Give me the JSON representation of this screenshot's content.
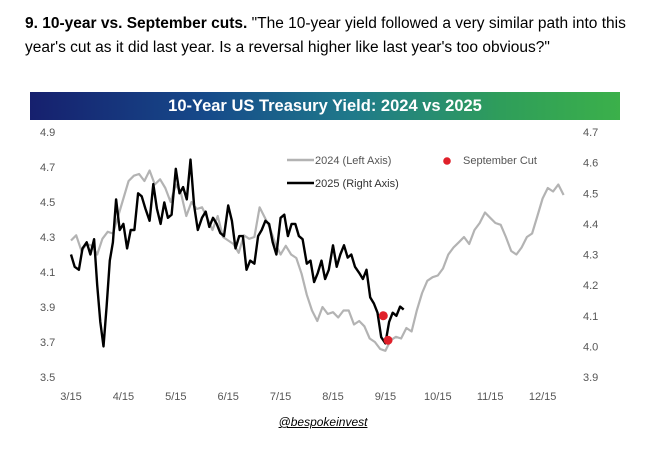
{
  "heading": {
    "lead": "9. 10-year vs. September cuts.",
    "quote": " \"The 10-year yield followed a very similar path into this year's cut as it did last year. Is a reversal higher like last year's too obvious?\""
  },
  "credit": "@bespokeinvest",
  "colors": {
    "series_2024": "#b3b3b3",
    "series_2025": "#000000",
    "cut_marker": "#e0202a",
    "axis_text": "#555555"
  },
  "chart_data": {
    "type": "line",
    "title": "10-Year US Treasury Yield: 2024 vs 2025",
    "x_ticks": [
      "3/15",
      "4/15",
      "5/15",
      "6/15",
      "7/15",
      "8/15",
      "9/15",
      "10/15",
      "11/15",
      "12/15"
    ],
    "x_tick_positions": [
      0,
      1,
      2,
      3,
      4,
      5,
      6,
      7,
      8,
      9
    ],
    "xlim": [
      0,
      9.4
    ],
    "left_axis": {
      "ticks": [
        "4.9",
        "4.7",
        "4.5",
        "4.3",
        "4.1",
        "3.9",
        "3.7",
        "3.5"
      ],
      "ylim": [
        3.5,
        4.9
      ]
    },
    "right_axis": {
      "ticks": [
        "4.7",
        "4.6",
        "4.5",
        "4.4",
        "4.3",
        "4.2",
        "4.1",
        "4.0",
        "3.9"
      ],
      "ylim": [
        3.9,
        4.7
      ]
    },
    "legend": [
      {
        "label": "2024 (Left Axis)",
        "series": "2024"
      },
      {
        "label": "2025 (Right Axis)",
        "series": "2025"
      },
      {
        "label": "September Cut",
        "series": "cut"
      }
    ],
    "series": [
      {
        "name": "2024 (Left Axis)",
        "axis": "left",
        "x": [
          0,
          0.1,
          0.2,
          0.3,
          0.4,
          0.5,
          0.6,
          0.7,
          0.8,
          0.9,
          1.0,
          1.1,
          1.2,
          1.3,
          1.4,
          1.5,
          1.6,
          1.7,
          1.8,
          1.9,
          2.0,
          2.1,
          2.2,
          2.3,
          2.4,
          2.5,
          2.6,
          2.7,
          2.8,
          2.9,
          3.0,
          3.1,
          3.2,
          3.3,
          3.4,
          3.5,
          3.6,
          3.7,
          3.8,
          3.9,
          4.0,
          4.1,
          4.2,
          4.3,
          4.4,
          4.5,
          4.6,
          4.7,
          4.8,
          4.9,
          5.0,
          5.1,
          5.2,
          5.3,
          5.4,
          5.5,
          5.6,
          5.7,
          5.8,
          5.9,
          6.0,
          6.1,
          6.2,
          6.3,
          6.4,
          6.5,
          6.6,
          6.7,
          6.8,
          6.9,
          7.0,
          7.1,
          7.2,
          7.3,
          7.4,
          7.5,
          7.6,
          7.7,
          7.8,
          7.9,
          8.0,
          8.1,
          8.2,
          8.3,
          8.4,
          8.5,
          8.6,
          8.7,
          8.8,
          8.9,
          9.0,
          9.1,
          9.2,
          9.3,
          9.4
        ],
        "values": [
          4.28,
          4.31,
          4.22,
          4.26,
          4.25,
          4.2,
          4.29,
          4.33,
          4.32,
          4.42,
          4.52,
          4.62,
          4.65,
          4.66,
          4.62,
          4.68,
          4.6,
          4.63,
          4.58,
          4.5,
          4.6,
          4.55,
          4.42,
          4.5,
          4.46,
          4.47,
          4.41,
          4.34,
          4.42,
          4.3,
          4.28,
          4.26,
          4.21,
          4.31,
          4.29,
          4.3,
          4.47,
          4.41,
          4.35,
          4.26,
          4.2,
          4.25,
          4.2,
          4.18,
          4.09,
          3.97,
          3.88,
          3.82,
          3.9,
          3.86,
          3.87,
          3.84,
          3.88,
          3.88,
          3.8,
          3.82,
          3.79,
          3.72,
          3.7,
          3.66,
          3.65,
          3.71,
          3.73,
          3.72,
          3.78,
          3.76,
          3.88,
          3.98,
          4.05,
          4.07,
          4.08,
          4.12,
          4.2,
          4.24,
          4.27,
          4.3,
          4.26,
          4.34,
          4.38,
          4.44,
          4.41,
          4.38,
          4.37,
          4.3,
          4.22,
          4.2,
          4.24,
          4.3,
          4.32,
          4.42,
          4.52,
          4.58,
          4.56,
          4.6,
          4.54
        ]
      },
      {
        "name": "2025 (Right Axis)",
        "axis": "right",
        "x": [
          0,
          0.07,
          0.15,
          0.22,
          0.3,
          0.37,
          0.44,
          0.5,
          0.56,
          0.62,
          0.68,
          0.74,
          0.8,
          0.86,
          0.93,
          1.0,
          1.07,
          1.14,
          1.21,
          1.28,
          1.35,
          1.42,
          1.5,
          1.57,
          1.64,
          1.71,
          1.78,
          1.85,
          1.92,
          2.0,
          2.07,
          2.14,
          2.21,
          2.28,
          2.35,
          2.42,
          2.5,
          2.57,
          2.64,
          2.71,
          2.78,
          2.85,
          2.92,
          3.0,
          3.07,
          3.14,
          3.21,
          3.28,
          3.35,
          3.42,
          3.5,
          3.57,
          3.64,
          3.71,
          3.78,
          3.85,
          3.92,
          4.0,
          4.07,
          4.14,
          4.21,
          4.28,
          4.35,
          4.42,
          4.5,
          4.57,
          4.64,
          4.71,
          4.78,
          4.85,
          4.92,
          5.0,
          5.07,
          5.14,
          5.21,
          5.28,
          5.35,
          5.42,
          5.5,
          5.57,
          5.64,
          5.71,
          5.78,
          5.85,
          5.92,
          6.0,
          6.07,
          6.14,
          6.21,
          6.28,
          6.35
        ],
        "values": [
          4.3,
          4.26,
          4.25,
          4.32,
          4.34,
          4.3,
          4.35,
          4.2,
          4.08,
          4.0,
          4.13,
          4.28,
          4.34,
          4.48,
          4.38,
          4.4,
          4.32,
          4.38,
          4.38,
          4.5,
          4.49,
          4.45,
          4.41,
          4.53,
          4.45,
          4.4,
          4.47,
          4.42,
          4.43,
          4.58,
          4.5,
          4.52,
          4.48,
          4.61,
          4.46,
          4.38,
          4.42,
          4.44,
          4.39,
          4.42,
          4.4,
          4.37,
          4.36,
          4.46,
          4.41,
          4.32,
          4.36,
          4.36,
          4.25,
          4.28,
          4.27,
          4.36,
          4.38,
          4.41,
          4.4,
          4.34,
          4.3,
          4.42,
          4.43,
          4.36,
          4.4,
          4.4,
          4.36,
          4.35,
          4.27,
          4.28,
          4.21,
          4.24,
          4.28,
          4.22,
          4.25,
          4.33,
          4.26,
          4.3,
          4.33,
          4.29,
          4.3,
          4.26,
          4.24,
          4.22,
          4.25,
          4.16,
          4.14,
          4.11,
          4.03,
          4.01,
          4.08,
          4.11,
          4.1,
          4.13,
          4.12
        ]
      }
    ],
    "cuts": [
      {
        "name": "2024 September Cut",
        "x": 6.05,
        "value": 3.71,
        "axis": "left"
      },
      {
        "name": "2025 September Cut",
        "x": 5.96,
        "value": 4.1,
        "axis": "right"
      }
    ]
  }
}
